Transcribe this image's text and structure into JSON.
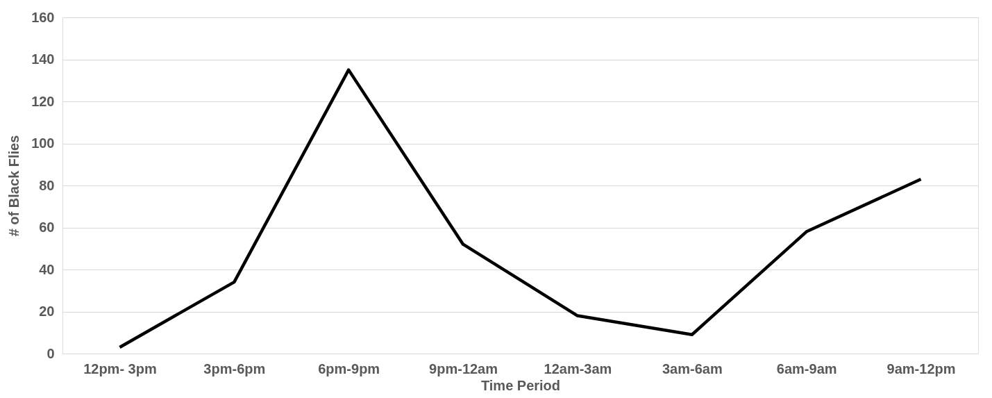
{
  "chart_data": {
    "type": "line",
    "xlabel": "Time Period",
    "ylabel": "# of Black Flies",
    "categories": [
      "12pm- 3pm",
      "3pm-6pm",
      "6pm-9pm",
      "9pm-12am",
      "12am-3am",
      "3am-6am",
      "6am-9am",
      "9am-12pm"
    ],
    "values": [
      3,
      34,
      135,
      52,
      18,
      9,
      58,
      83
    ],
    "color": "#000000",
    "ylim": [
      0,
      160
    ],
    "yticks": [
      0,
      20,
      40,
      60,
      80,
      100,
      120,
      140,
      160
    ],
    "grid": "y"
  }
}
